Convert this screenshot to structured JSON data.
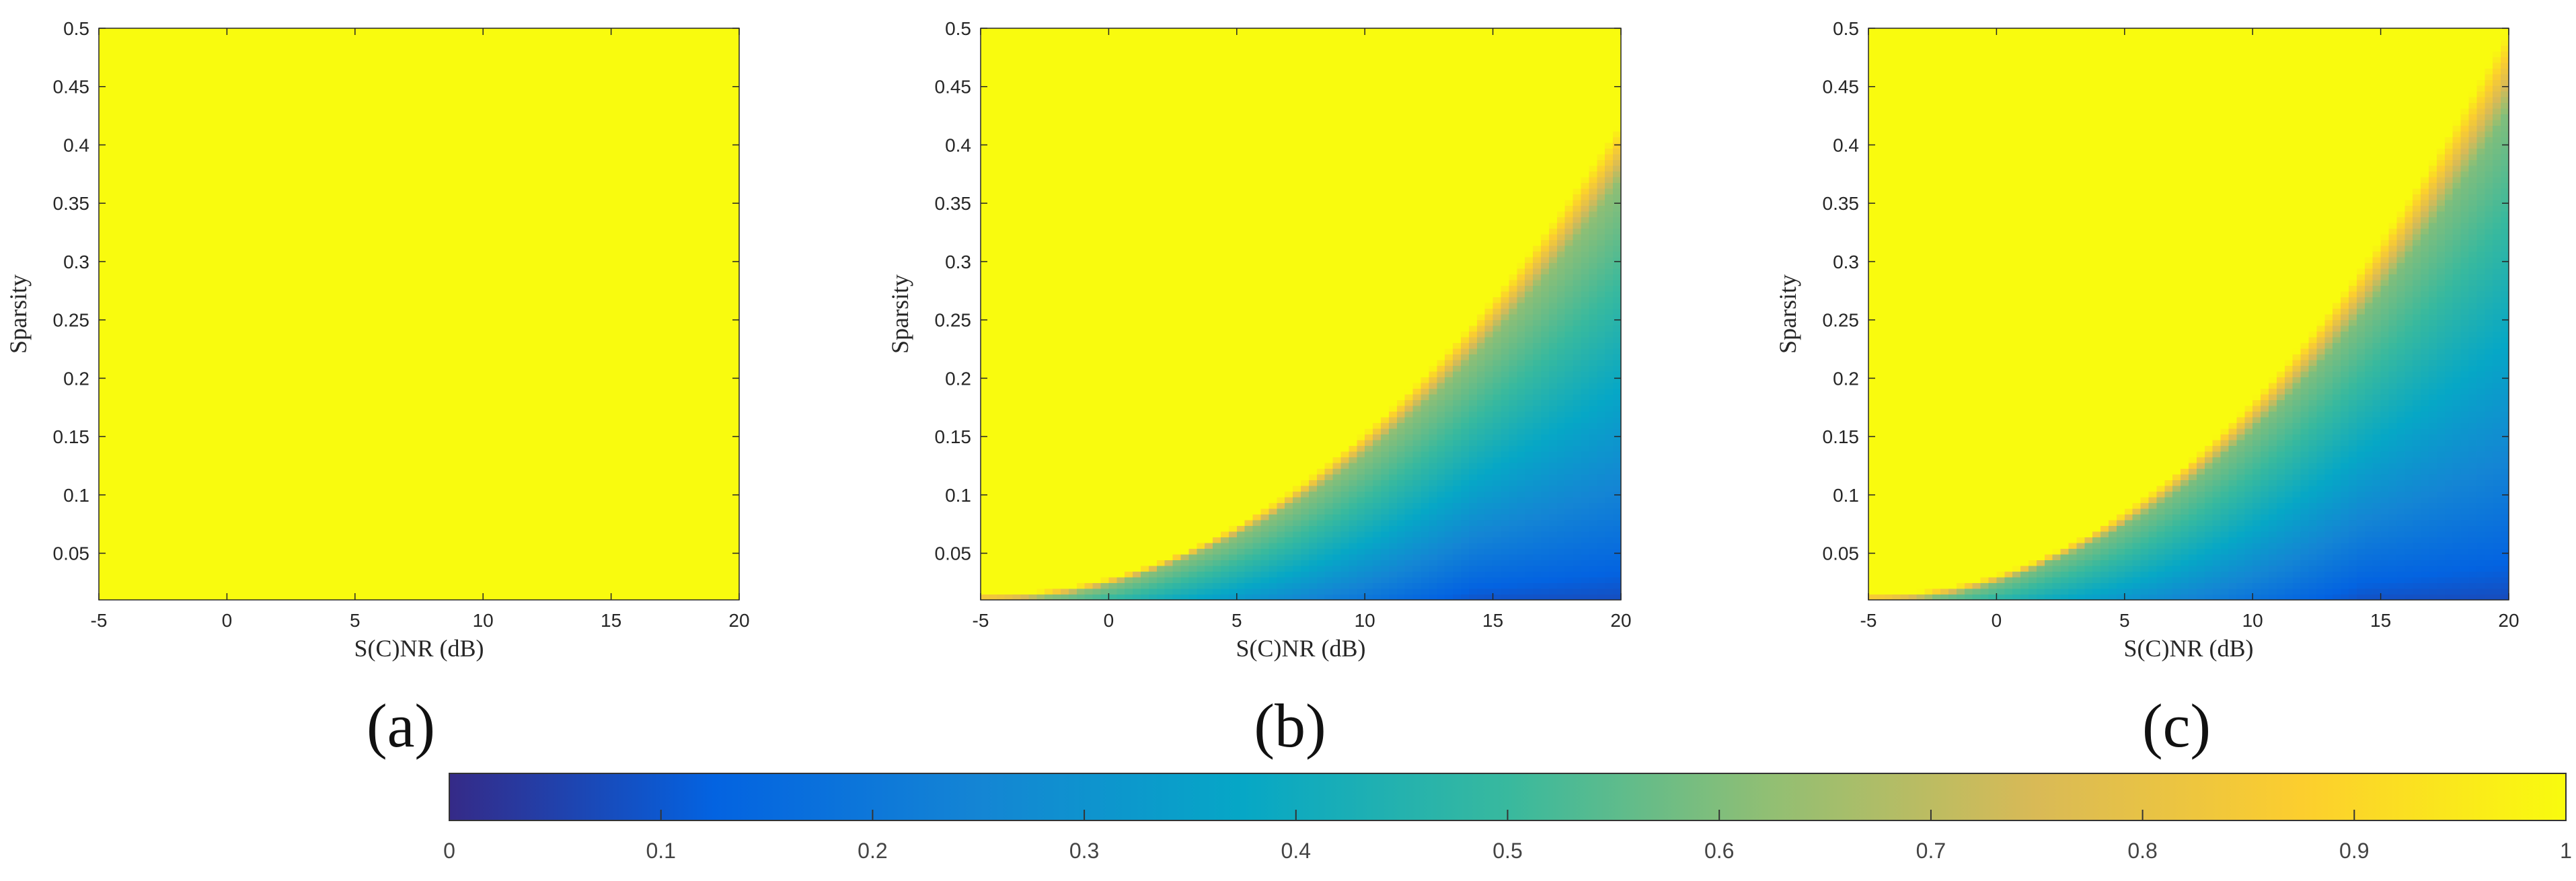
{
  "chart_data": [
    {
      "type": "heatmap",
      "panel_label": "(a)",
      "xlabel": "S(C)NR (dB)",
      "ylabel": "Sparsity",
      "xlim": [
        -5,
        20
      ],
      "ylim": [
        0.01,
        0.5
      ],
      "x_ticks": [
        "-5",
        "0",
        "5",
        "10",
        "15",
        "20"
      ],
      "y_ticks": [
        "0.05",
        "0.1",
        "0.15",
        "0.2",
        "0.25",
        "0.3",
        "0.35",
        "0.4",
        "0.45",
        "0.5"
      ],
      "surface": {
        "uniform_value": 1.0
      }
    },
    {
      "type": "heatmap",
      "panel_label": "(b)",
      "xlabel": "S(C)NR (dB)",
      "ylabel": "Sparsity",
      "xlim": [
        -5,
        20
      ],
      "ylim": [
        0.01,
        0.5
      ],
      "x_ticks": [
        "-5",
        "0",
        "5",
        "10",
        "15",
        "20"
      ],
      "y_ticks": [
        "0.05",
        "0.1",
        "0.15",
        "0.2",
        "0.25",
        "0.3",
        "0.35",
        "0.4",
        "0.45",
        "0.5"
      ],
      "surface": {
        "boundary_sparsity_at_xmin": 0.015,
        "boundary_sparsity_at_xmax": 0.42,
        "boundary_exponent": 2.1,
        "transition_width": 0.12,
        "value_near_boundary": 0.62,
        "value_at_bottom": 0.05,
        "value_at_bottom_left": 0.45
      }
    },
    {
      "type": "heatmap",
      "panel_label": "(c)",
      "xlabel": "S(C)NR (dB)",
      "ylabel": "Sparsity",
      "xlim": [
        -5,
        20
      ],
      "ylim": [
        0.01,
        0.5
      ],
      "x_ticks": [
        "-5",
        "0",
        "5",
        "10",
        "15",
        "20"
      ],
      "y_ticks": [
        "0.05",
        "0.1",
        "0.15",
        "0.2",
        "0.25",
        "0.3",
        "0.35",
        "0.4",
        "0.45",
        "0.5"
      ],
      "surface": {
        "boundary_sparsity_at_xmin": 0.015,
        "boundary_sparsity_at_xmax": 0.5,
        "boundary_exponent": 2.1,
        "transition_width": 0.14,
        "value_near_boundary": 0.6,
        "value_at_bottom": 0.05,
        "value_at_bottom_left": 0.45
      }
    }
  ],
  "colorbar": {
    "range": [
      0,
      1
    ],
    "tick_labels": [
      "0",
      "0.1",
      "0.2",
      "0.3",
      "0.4",
      "0.5",
      "0.6",
      "0.7",
      "0.8",
      "0.9",
      "1"
    ],
    "colormap": "parula",
    "colormap_stops": [
      "#352a87",
      "#0363e1",
      "#1485d4",
      "#06a7c6",
      "#38b99e",
      "#92bf73",
      "#d9ba56",
      "#fcce2e",
      "#f9fb0e"
    ]
  }
}
